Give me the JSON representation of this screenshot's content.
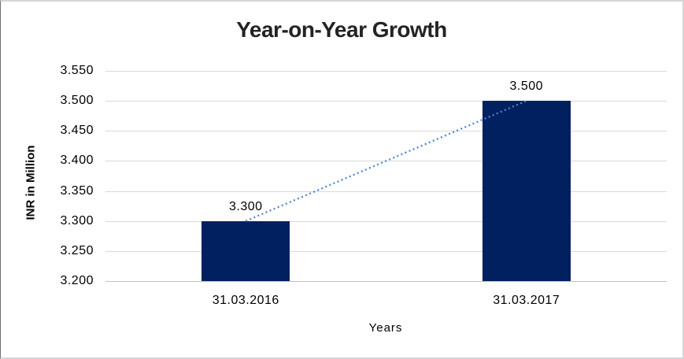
{
  "chart_data": {
    "type": "bar",
    "title": "Year-on-Year Growth",
    "xlabel": "Years",
    "ylabel": "INR in Million",
    "categories": [
      "31.03.2016",
      "31.03.2017"
    ],
    "values": [
      3.3,
      3.5
    ],
    "data_labels": [
      "3.300",
      "3.500"
    ],
    "ylim": [
      3.2,
      3.55
    ],
    "ytick_step": 0.05,
    "ytick_labels": [
      "3.200",
      "3.250",
      "3.300",
      "3.350",
      "3.400",
      "3.450",
      "3.500",
      "3.550"
    ],
    "grid": true,
    "legend": "none",
    "trendline": {
      "style": "dotted",
      "from_value": 3.3,
      "to_value": 3.5
    },
    "colors": {
      "bar": "#002060",
      "trendline": "#4e86c8",
      "gridline": "#d9d9d9",
      "axis_line": "#bfbfbf",
      "text": "#000000",
      "background": "#ffffff"
    }
  }
}
